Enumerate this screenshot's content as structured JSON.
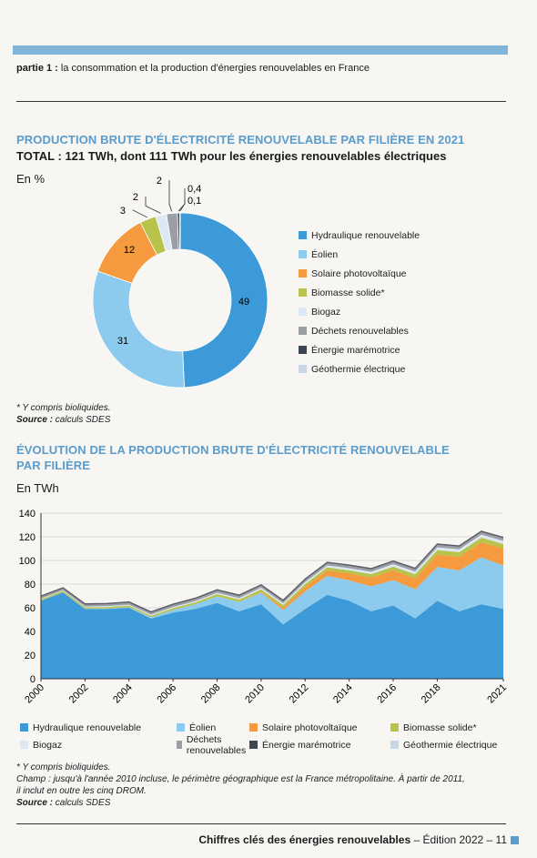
{
  "header": {
    "part_bold": "partie 1 :",
    "part_text": "la consommation et la production d'énergies renouvelables en France"
  },
  "section1": {
    "title": "PRODUCTION BRUTE D'ÉLECTRICITÉ RENOUVELABLE PAR FILIÈRE EN 2021",
    "subtitle": "TOTAL : 121 TWh, dont 111 TWh pour les énergies renouvelables électriques",
    "unit": "En %",
    "note": "* Y compris bioliquides.",
    "source_label": "Source :",
    "source_text": "calculs SDES"
  },
  "legend": [
    {
      "label": "Hydraulique renouvelable",
      "color": "#3d9ad8"
    },
    {
      "label": "Éolien",
      "color": "#8ccbed"
    },
    {
      "label": "Solaire photovoltaïque",
      "color": "#f59a3e"
    },
    {
      "label": "Biomasse solide*",
      "color": "#b9c24a"
    },
    {
      "label": "Biogaz",
      "color": "#dce8f3"
    },
    {
      "label": "Déchets renouvelables",
      "color": "#9c9ea6"
    },
    {
      "label": "Énergie marémotrice",
      "color": "#3e4552"
    },
    {
      "label": "Géothermie électrique",
      "color": "#c9d6e6"
    }
  ],
  "chart_data": [
    {
      "type": "pie",
      "categories": [
        "Hydraulique renouvelable",
        "Éolien",
        "Solaire photovoltaïque",
        "Biomasse solide*",
        "Biogaz",
        "Déchets renouvelables",
        "Énergie marémotrice",
        "Géothermie électrique"
      ],
      "values": [
        49,
        31,
        12,
        3,
        2,
        2,
        0.4,
        0.1
      ],
      "labels": [
        "49",
        "31",
        "12",
        "3",
        "2",
        "2",
        "0,4",
        "0,1"
      ]
    },
    {
      "type": "area",
      "title": "ÉVOLUTION DE LA PRODUCTION BRUTE D'ÉLECTRICITÉ RENOUVELABLE PAR FILIÈRE",
      "ylabel": "En TWh",
      "ylim": [
        0,
        140
      ],
      "yticks": [
        0,
        20,
        40,
        60,
        80,
        100,
        120,
        140
      ],
      "x": [
        2000,
        2001,
        2002,
        2003,
        2004,
        2005,
        2006,
        2007,
        2008,
        2009,
        2010,
        2011,
        2012,
        2013,
        2014,
        2015,
        2016,
        2017,
        2018,
        2019,
        2020,
        2021
      ],
      "xticks": [
        "2000",
        "2002",
        "2004",
        "2006",
        "2008",
        "2010",
        "2012",
        "2014",
        "2016",
        "2018",
        "2021"
      ],
      "series": [
        {
          "name": "Hydraulique renouvelable",
          "values": [
            66,
            73,
            59,
            59,
            60,
            51,
            56,
            59,
            64,
            57,
            63,
            46,
            59,
            71,
            66,
            57,
            62,
            51,
            66,
            57,
            63,
            59
          ]
        },
        {
          "name": "Éolien",
          "values": [
            0.1,
            0.1,
            0.3,
            0.4,
            0.6,
            1,
            2.2,
            4,
            5.7,
            7.9,
            9.9,
            12.1,
            14.9,
            16.0,
            17.2,
            21.2,
            21.4,
            24.6,
            28.5,
            34.6,
            39.7,
            36.8
          ]
        },
        {
          "name": "Solaire photovoltaïque",
          "values": [
            0,
            0,
            0,
            0,
            0,
            0,
            0,
            0,
            0.1,
            0.2,
            0.6,
            2.1,
            4.0,
            4.7,
            5.9,
            7.3,
            8.2,
            9.2,
            10.5,
            11.4,
            12.6,
            14.3
          ]
        },
        {
          "name": "Biomasse solide*",
          "values": [
            1.2,
            1.2,
            1.2,
            1.3,
            1.3,
            1.4,
            1.5,
            1.6,
            1.8,
            1.9,
            2.1,
            2.2,
            2.3,
            2.5,
            2.6,
            3.0,
            3.2,
            3.6,
            3.8,
            4.0,
            4.0,
            3.8
          ]
        },
        {
          "name": "Biogaz",
          "values": [
            0.5,
            0.5,
            0.6,
            0.7,
            0.7,
            0.8,
            0.9,
            1.0,
            1.1,
            1.2,
            1.3,
            1.4,
            1.5,
            1.6,
            1.8,
            1.9,
            2.0,
            2.2,
            2.3,
            2.4,
            2.5,
            2.6
          ]
        },
        {
          "name": "Déchets renouvelables",
          "values": [
            1.6,
            1.6,
            1.7,
            1.7,
            1.8,
            1.8,
            1.9,
            1.9,
            2.0,
            2.0,
            2.0,
            2.0,
            2.1,
            2.1,
            2.1,
            2.2,
            2.2,
            2.2,
            2.2,
            2.3,
            2.3,
            2.4
          ]
        },
        {
          "name": "Énergie marémotrice",
          "values": [
            0.5,
            0.5,
            0.5,
            0.5,
            0.5,
            0.5,
            0.5,
            0.5,
            0.5,
            0.5,
            0.5,
            0.5,
            0.5,
            0.5,
            0.5,
            0.5,
            0.5,
            0.5,
            0.5,
            0.5,
            0.5,
            0.5
          ]
        },
        {
          "name": "Géothermie électrique",
          "values": [
            0,
            0,
            0,
            0,
            0,
            0,
            0,
            0,
            0,
            0,
            0,
            0,
            0,
            0,
            0,
            0,
            0,
            0,
            0.1,
            0.1,
            0.1,
            0.1
          ]
        }
      ]
    }
  ],
  "section2": {
    "title_line1": "ÉVOLUTION DE LA PRODUCTION BRUTE D'ÉLECTRICITÉ RENOUVELABLE",
    "title_line2": "PAR FILIÈRE",
    "unit": "En TWh",
    "note1": "* Y compris bioliquides.",
    "note2_label": "Champ :",
    "note2_text": "jusqu'à l'année 2010 incluse, le périmètre géographique est la France métropolitaine. À partir de 2011,",
    "note3": "il inclut en outre les cinq DROM.",
    "source_label": "Source :",
    "source_text": "calculs SDES"
  },
  "footer": {
    "bold": "Chiffres clés des énergies renouvelables",
    "text": "– Édition 2022 – 11"
  }
}
